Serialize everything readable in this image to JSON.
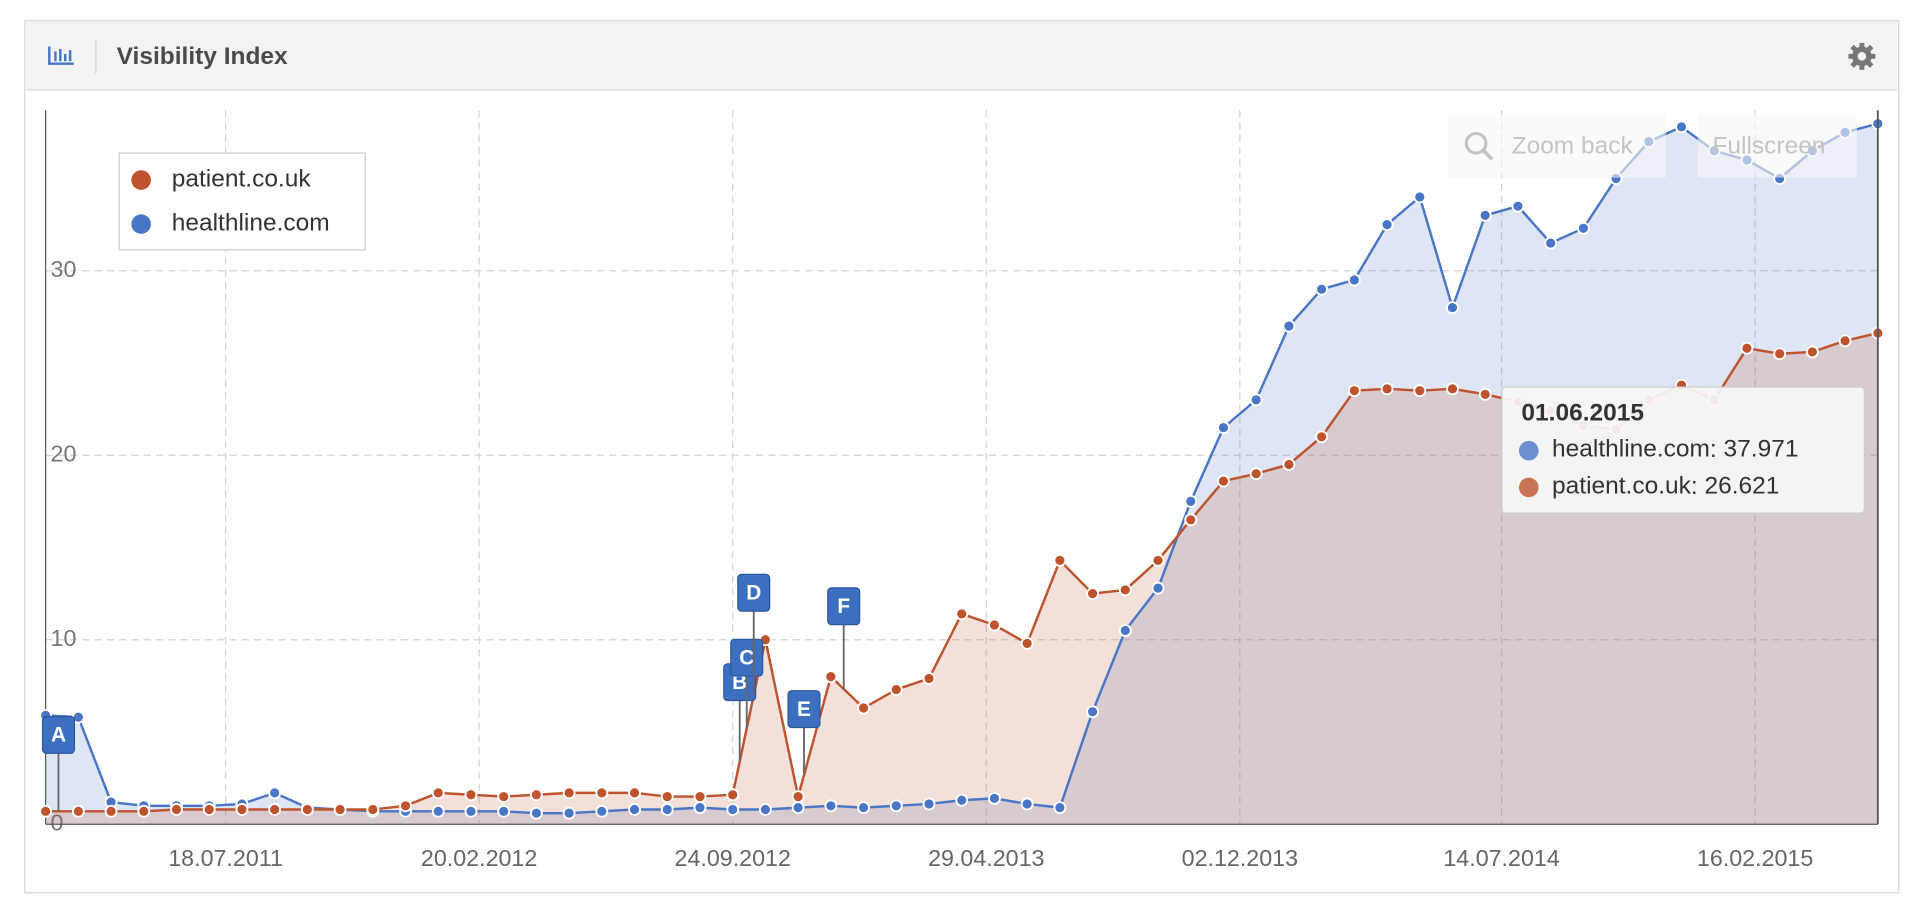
{
  "header": {
    "title": "Visibility Index"
  },
  "buttons": [
    "Zoom back",
    "Fullscreen"
  ],
  "chart_data": {
    "type": "line",
    "x": [
      "14.02.2011",
      "14.03.2011",
      "11.04.2011",
      "09.05.2011",
      "06.06.2011",
      "04.07.2011",
      "01.08.2011",
      "29.08.2011",
      "26.09.2011",
      "24.10.2011",
      "21.11.2011",
      "19.12.2011",
      "16.01.2012",
      "13.02.2012",
      "12.03.2012",
      "09.04.2012",
      "07.05.2012",
      "04.06.2012",
      "02.07.2012",
      "30.07.2012",
      "27.08.2012",
      "24.09.2012",
      "22.10.2012",
      "19.11.2012",
      "17.12.2012",
      "14.01.2013",
      "11.02.2013",
      "11.03.2013",
      "08.04.2013",
      "06.05.2013",
      "03.06.2013",
      "01.07.2013",
      "29.07.2013",
      "26.08.2013",
      "23.09.2013",
      "21.10.2013",
      "18.11.2013",
      "16.12.2013",
      "13.01.2014",
      "10.02.2014",
      "10.03.2014",
      "07.04.2014",
      "05.05.2014",
      "02.06.2014",
      "30.06.2014",
      "28.07.2014",
      "25.08.2014",
      "22.09.2014",
      "20.10.2014",
      "17.11.2014",
      "15.12.2014",
      "12.01.2015",
      "09.02.2015",
      "09.03.2015",
      "06.04.2015",
      "04.05.2015",
      "01.06.2015"
    ],
    "series": [
      {
        "name": "patient.co.uk",
        "color": "#bf532d",
        "values": [
          0.7,
          0.7,
          0.7,
          0.7,
          0.8,
          0.8,
          0.8,
          0.8,
          0.8,
          0.8,
          0.8,
          1.0,
          1.7,
          1.6,
          1.5,
          1.6,
          1.7,
          1.7,
          1.7,
          1.5,
          1.5,
          1.6,
          10,
          1.5,
          8,
          6.3,
          7.3,
          7.9,
          11.4,
          10.8,
          9.8,
          14.3,
          12.5,
          12.7,
          14.3,
          16.5,
          18.6,
          19,
          19.5,
          21,
          23.5,
          23.6,
          23.5,
          23.6,
          23.3,
          22.9,
          22.4,
          21.6,
          21.4,
          23,
          23.8,
          23,
          25.8,
          25.5,
          25.6,
          26.2,
          26.621
        ]
      },
      {
        "name": "healthline.com",
        "color": "#4a76c6",
        "values": [
          5.9,
          5.8,
          1.2,
          1.0,
          1.0,
          1.0,
          1.1,
          1.7,
          0.9,
          0.8,
          0.7,
          0.7,
          0.7,
          0.7,
          0.7,
          0.6,
          0.6,
          0.7,
          0.8,
          0.8,
          0.9,
          0.8,
          0.8,
          0.9,
          1.0,
          0.9,
          1.0,
          1.1,
          1.3,
          1.4,
          1.1,
          0.9,
          6.1,
          10.5,
          12.8,
          17.5,
          21.5,
          23,
          27,
          29,
          29.5,
          32.5,
          34,
          28,
          33,
          33.5,
          31.5,
          32.3,
          35,
          37,
          37.8,
          36.5,
          36,
          35,
          36.5,
          37.5,
          37.971
        ]
      }
    ],
    "ylim": [
      0,
      38.7
    ],
    "yticks": [
      0,
      10,
      20,
      30
    ],
    "xlim": [
      "14.02.2011",
      "01.06.2015"
    ],
    "xticks": [
      "18.07.2011",
      "20.02.2012",
      "24.09.2012",
      "29.04.2013",
      "02.12.2013",
      "14.07.2014",
      "16.02.2015"
    ],
    "grid": true,
    "legend": "upper left",
    "flags": [
      {
        "label": "A",
        "x": "25.02.2011"
      },
      {
        "label": "B",
        "x": "30.09.2012"
      },
      {
        "label": "C",
        "x": "06.10.2012"
      },
      {
        "label": "D",
        "x": "12.10.2012"
      },
      {
        "label": "E",
        "x": "24.11.2012"
      },
      {
        "label": "F",
        "x": "28.12.2012"
      }
    ],
    "tooltip_index": 56
  }
}
